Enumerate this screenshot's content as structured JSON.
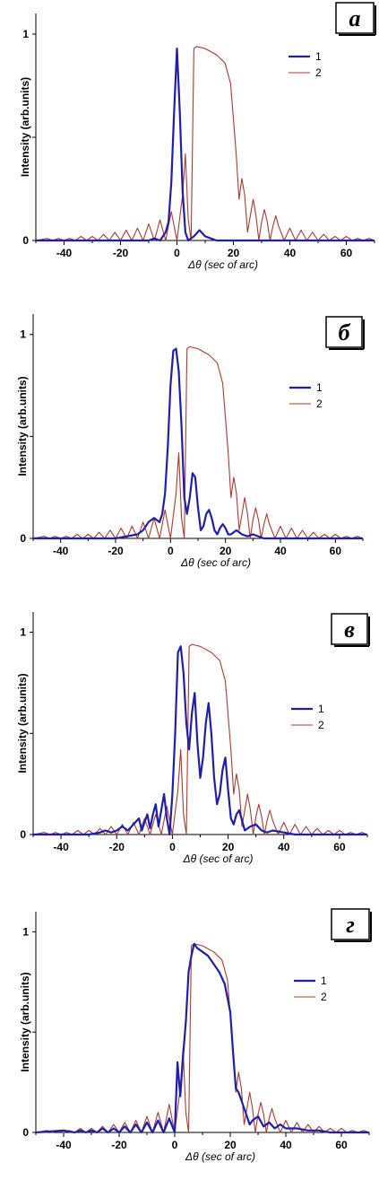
{
  "chart_data": [
    {
      "type": "line",
      "panel_label": "a",
      "xlabel": "Δθ (sec of arc)",
      "ylabel": "Intensity (arb.units)",
      "xlim": [
        -50,
        70
      ],
      "ylim": [
        0,
        1.1
      ],
      "x_ticks": [
        "-40",
        "-20",
        "0",
        "20",
        "40",
        "60"
      ],
      "y_ticks": [
        "0",
        "1"
      ],
      "series": [
        {
          "name": "1",
          "color": "#1f1faf",
          "x": [
            -50,
            -10,
            -8,
            -6,
            -5,
            -4,
            -3,
            -2,
            -1,
            0,
            1,
            2,
            3,
            4,
            6,
            8,
            10,
            12,
            14,
            70
          ],
          "y": [
            0,
            0,
            0.01,
            0,
            0.02,
            0.04,
            0.09,
            0.28,
            0.62,
            0.93,
            0.62,
            0.24,
            0.04,
            0,
            0.02,
            0.05,
            0.02,
            0.01,
            0,
            0
          ]
        },
        {
          "name": "2",
          "color": "#b03a2e",
          "x": [
            -50,
            -46,
            -44,
            -42,
            -40,
            -38,
            -36,
            -34,
            -32,
            -30,
            -28,
            -26,
            -24,
            -22,
            -20,
            -18,
            -16,
            -14,
            -12,
            -10,
            -8,
            -6,
            -4,
            -2,
            0,
            2,
            3,
            4,
            5,
            6,
            7,
            10,
            14,
            17,
            19,
            21,
            22,
            23,
            24,
            25,
            26,
            27,
            28,
            29,
            30,
            31,
            32,
            33,
            34,
            35,
            36,
            38,
            40,
            42,
            44,
            46,
            48,
            50,
            52,
            54,
            56,
            58,
            60,
            62,
            64,
            66,
            68,
            70
          ],
          "y": [
            0,
            0.01,
            0,
            0.01,
            0,
            0.01,
            0,
            0.02,
            0,
            0.02,
            0,
            0.03,
            0,
            0.04,
            0,
            0.05,
            0,
            0.06,
            0,
            0.08,
            0,
            0.1,
            0,
            0.14,
            0,
            0.22,
            0.42,
            0.1,
            0,
            0.93,
            0.94,
            0.93,
            0.9,
            0.86,
            0.76,
            0.42,
            0.2,
            0.3,
            0.22,
            0.04,
            0.12,
            0.2,
            0.12,
            0,
            0.09,
            0.15,
            0.09,
            0,
            0.07,
            0.12,
            0.07,
            0,
            0.06,
            0,
            0.05,
            0,
            0.04,
            0,
            0.03,
            0,
            0.02,
            0,
            0.02,
            0,
            0.01,
            0,
            0.01,
            0
          ]
        }
      ],
      "legend": {
        "position": "top-right",
        "entries": [
          "1",
          "2"
        ]
      },
      "grid": false
    },
    {
      "type": "line",
      "panel_label": "б",
      "xlabel": "Δθ (sec of arc)",
      "ylabel": "Intensity (arb.units)",
      "xlim": [
        -50,
        70
      ],
      "ylim": [
        0,
        1.1
      ],
      "x_ticks": [
        "-40",
        "-20",
        "0",
        "20",
        "40",
        "60"
      ],
      "y_ticks": [
        "0",
        "1"
      ],
      "series": [
        {
          "name": "1",
          "color": "#1f1faf",
          "x": [
            -50,
            -20,
            -16,
            -12,
            -10,
            -8,
            -6,
            -4,
            -3,
            -2,
            -1,
            0,
            1,
            2,
            3,
            4,
            5,
            6,
            7,
            8,
            9,
            10,
            11,
            12,
            13,
            14,
            15,
            16,
            17,
            18,
            19,
            20,
            21,
            22,
            24,
            26,
            28,
            30,
            34,
            70
          ],
          "y": [
            0,
            0,
            0.01,
            0.02,
            0.04,
            0.08,
            0.1,
            0.08,
            0.12,
            0.22,
            0.45,
            0.75,
            0.92,
            0.93,
            0.82,
            0.55,
            0.2,
            0.12,
            0.2,
            0.32,
            0.3,
            0.15,
            0.04,
            0.06,
            0.12,
            0.14,
            0.1,
            0.04,
            0.02,
            0.05,
            0.07,
            0.05,
            0.02,
            0.02,
            0.04,
            0.02,
            0.01,
            0.02,
            0,
            0
          ]
        },
        {
          "name": "2",
          "color": "#b03a2e",
          "x": [
            -50,
            -46,
            -44,
            -42,
            -40,
            -38,
            -36,
            -34,
            -32,
            -30,
            -28,
            -26,
            -24,
            -22,
            -20,
            -18,
            -16,
            -14,
            -12,
            -10,
            -8,
            -6,
            -4,
            -2,
            0,
            2,
            3,
            4,
            5,
            6,
            7,
            10,
            14,
            17,
            19,
            21,
            22,
            23,
            24,
            25,
            26,
            27,
            28,
            29,
            30,
            31,
            32,
            33,
            34,
            35,
            36,
            38,
            40,
            42,
            44,
            46,
            48,
            50,
            52,
            54,
            56,
            58,
            60,
            62,
            64,
            66,
            68,
            70
          ],
          "y": [
            0,
            0.01,
            0,
            0.01,
            0,
            0.01,
            0,
            0.02,
            0,
            0.02,
            0,
            0.03,
            0,
            0.04,
            0,
            0.05,
            0,
            0.06,
            0,
            0.08,
            0,
            0.1,
            0,
            0.14,
            0,
            0.22,
            0.42,
            0.1,
            0,
            0.93,
            0.94,
            0.93,
            0.9,
            0.86,
            0.76,
            0.42,
            0.2,
            0.3,
            0.22,
            0.04,
            0.12,
            0.2,
            0.12,
            0,
            0.09,
            0.15,
            0.09,
            0,
            0.07,
            0.12,
            0.07,
            0,
            0.06,
            0,
            0.05,
            0,
            0.04,
            0,
            0.03,
            0,
            0.02,
            0,
            0.02,
            0,
            0.01,
            0,
            0.01,
            0
          ]
        }
      ],
      "legend": {
        "position": "top-right",
        "entries": [
          "1",
          "2"
        ]
      },
      "grid": false
    },
    {
      "type": "line",
      "panel_label": "в",
      "xlabel": "Δθ (sec of arc)",
      "ylabel": "Intensity (arb.units)",
      "xlim": [
        -50,
        70
      ],
      "ylim": [
        0,
        1.1
      ],
      "x_ticks": [
        "-40",
        "-20",
        "0",
        "20",
        "40",
        "60"
      ],
      "y_ticks": [
        "0",
        "1"
      ],
      "series": [
        {
          "name": "1",
          "color": "#1f1faf",
          "x": [
            -50,
            -30,
            -26,
            -24,
            -22,
            -20,
            -18,
            -16,
            -14,
            -12,
            -11,
            -10,
            -9,
            -8,
            -7,
            -6,
            -5,
            -4,
            -3,
            -2,
            -1,
            0,
            1,
            2,
            3,
            4,
            5,
            6,
            7,
            8,
            9,
            10,
            11,
            12,
            13,
            14,
            15,
            16,
            17,
            18,
            19,
            20,
            21,
            22,
            23,
            24,
            25,
            26,
            28,
            30,
            32,
            34,
            36,
            40,
            44,
            70
          ],
          "y": [
            0,
            0,
            0.01,
            0.02,
            0.01,
            0.02,
            0.04,
            0.02,
            0.05,
            0.08,
            0.02,
            0.06,
            0.1,
            0.03,
            0.1,
            0.15,
            0.04,
            0.12,
            0.2,
            0.08,
            0,
            0.2,
            0.5,
            0.9,
            0.93,
            0.8,
            0.55,
            0.42,
            0.6,
            0.7,
            0.45,
            0.28,
            0.38,
            0.55,
            0.65,
            0.5,
            0.28,
            0.15,
            0.2,
            0.32,
            0.38,
            0.22,
            0.08,
            0.05,
            0.1,
            0.12,
            0.07,
            0.02,
            0.04,
            0.05,
            0.02,
            0.01,
            0.02,
            0.01,
            0,
            0
          ]
        },
        {
          "name": "2",
          "color": "#b03a2e",
          "x": [
            -50,
            -46,
            -44,
            -42,
            -40,
            -38,
            -36,
            -34,
            -32,
            -30,
            -28,
            -26,
            -24,
            -22,
            -20,
            -18,
            -16,
            -14,
            -12,
            -10,
            -8,
            -6,
            -4,
            -2,
            0,
            2,
            3,
            4,
            5,
            6,
            7,
            10,
            14,
            17,
            19,
            21,
            22,
            23,
            24,
            25,
            26,
            27,
            28,
            29,
            30,
            31,
            32,
            33,
            34,
            35,
            36,
            38,
            40,
            42,
            44,
            46,
            48,
            50,
            52,
            54,
            56,
            58,
            60,
            62,
            64,
            66,
            68,
            70
          ],
          "y": [
            0,
            0.01,
            0,
            0.01,
            0,
            0.01,
            0,
            0.02,
            0,
            0.02,
            0,
            0.03,
            0,
            0.04,
            0,
            0.05,
            0,
            0.06,
            0,
            0.08,
            0,
            0.1,
            0,
            0.14,
            0,
            0.22,
            0.42,
            0.1,
            0,
            0.93,
            0.94,
            0.93,
            0.9,
            0.86,
            0.76,
            0.42,
            0.2,
            0.3,
            0.22,
            0.04,
            0.12,
            0.2,
            0.12,
            0,
            0.09,
            0.15,
            0.09,
            0,
            0.07,
            0.12,
            0.07,
            0,
            0.06,
            0,
            0.05,
            0,
            0.04,
            0,
            0.03,
            0,
            0.02,
            0,
            0.02,
            0,
            0.01,
            0,
            0.01,
            0
          ]
        }
      ],
      "legend": {
        "position": "top-right",
        "entries": [
          "1",
          "2"
        ]
      },
      "grid": false
    },
    {
      "type": "line",
      "panel_label": "г",
      "xlabel": "Δθ (sec of arc)",
      "ylabel": "Intensity (arb.units)",
      "xlim": [
        -50,
        70
      ],
      "ylim": [
        0,
        1.1
      ],
      "x_ticks": [
        "-40",
        "-20",
        "0",
        "20",
        "40",
        "60"
      ],
      "y_ticks": [
        "0",
        "1"
      ],
      "series": [
        {
          "name": "1",
          "color": "#1f1faf",
          "x": [
            -50,
            -40,
            -36,
            -34,
            -32,
            -30,
            -28,
            -26,
            -24,
            -22,
            -20,
            -18,
            -16,
            -14,
            -12,
            -10,
            -8,
            -6,
            -4,
            -2,
            0,
            1,
            2,
            3,
            4,
            5,
            6,
            7,
            8,
            10,
            12,
            14,
            16,
            18,
            20,
            21,
            22,
            23,
            24,
            25,
            26,
            27,
            28,
            30,
            32,
            34,
            36,
            38,
            40,
            44,
            48,
            52,
            56,
            60,
            70
          ],
          "y": [
            0,
            0.01,
            0,
            0.01,
            0,
            0.01,
            0,
            0.02,
            0,
            0.02,
            0,
            0.03,
            0,
            0.04,
            0,
            0.05,
            0,
            0.06,
            0,
            0.07,
            0,
            0.35,
            0.18,
            0.38,
            0.55,
            0.8,
            0.88,
            0.94,
            0.92,
            0.9,
            0.88,
            0.84,
            0.8,
            0.74,
            0.6,
            0.4,
            0.22,
            0.2,
            0.16,
            0.12,
            0.08,
            0.04,
            0.06,
            0.08,
            0.03,
            0.05,
            0.02,
            0.04,
            0.02,
            0.02,
            0.01,
            0.01,
            0,
            0,
            0
          ]
        },
        {
          "name": "2",
          "color": "#b03a2e",
          "x": [
            -50,
            -46,
            -44,
            -42,
            -40,
            -38,
            -36,
            -34,
            -32,
            -30,
            -28,
            -26,
            -24,
            -22,
            -20,
            -18,
            -16,
            -14,
            -12,
            -10,
            -8,
            -6,
            -4,
            -2,
            0,
            2,
            3,
            4,
            5,
            6,
            7,
            10,
            14,
            17,
            19,
            21,
            22,
            23,
            24,
            25,
            26,
            27,
            28,
            29,
            30,
            31,
            32,
            33,
            34,
            35,
            36,
            38,
            40,
            42,
            44,
            46,
            48,
            50,
            52,
            54,
            56,
            58,
            60,
            62,
            64,
            66,
            68,
            70
          ],
          "y": [
            0,
            0.01,
            0,
            0.01,
            0,
            0.01,
            0,
            0.02,
            0,
            0.02,
            0,
            0.03,
            0,
            0.04,
            0,
            0.05,
            0,
            0.06,
            0,
            0.08,
            0,
            0.1,
            0,
            0.14,
            0,
            0.22,
            0.42,
            0.1,
            0,
            0.93,
            0.94,
            0.93,
            0.9,
            0.86,
            0.76,
            0.42,
            0.2,
            0.3,
            0.22,
            0.04,
            0.12,
            0.2,
            0.12,
            0,
            0.09,
            0.15,
            0.09,
            0,
            0.07,
            0.12,
            0.07,
            0,
            0.06,
            0,
            0.05,
            0,
            0.04,
            0,
            0.03,
            0,
            0.02,
            0,
            0.02,
            0,
            0.01,
            0,
            0.01,
            0
          ]
        }
      ],
      "legend": {
        "position": "top-right",
        "entries": [
          "1",
          "2"
        ]
      },
      "grid": false
    }
  ]
}
